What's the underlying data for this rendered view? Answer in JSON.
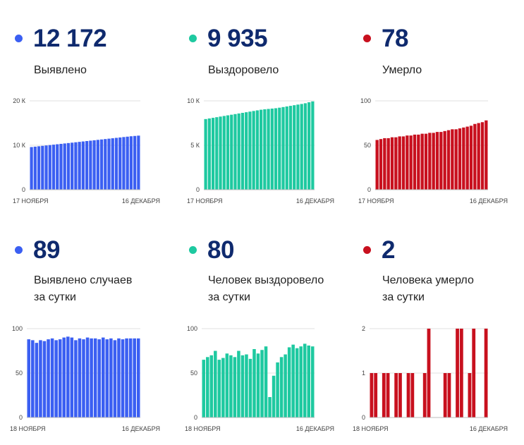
{
  "colors": {
    "blue": "#3b5ff2",
    "green": "#1ec9a0",
    "red": "#c8101e",
    "number": "#0f2a6e"
  },
  "stats": [
    {
      "value": "12 172",
      "label_lines": [
        "Выявлено"
      ],
      "color_key": "blue"
    },
    {
      "value": "9 935",
      "label_lines": [
        "Выздоровело"
      ],
      "color_key": "green"
    },
    {
      "value": "78",
      "label_lines": [
        "Умерло"
      ],
      "color_key": "red"
    },
    {
      "value": "89",
      "label_lines": [
        "Выявлено случаев",
        "за сутки"
      ],
      "color_key": "blue"
    },
    {
      "value": "80",
      "label_lines": [
        "Человек выздоровело",
        "за сутки"
      ],
      "color_key": "green"
    },
    {
      "value": "2",
      "label_lines": [
        "Человека умерло",
        "за сутки"
      ],
      "color_key": "red"
    }
  ],
  "chart_data": [
    {
      "type": "bar",
      "xlabel_start": "17 НОЯБРЯ",
      "xlabel_end": "16 ДЕКАБРЯ",
      "ylim": [
        0,
        20000
      ],
      "yticks": [
        {
          "v": 0,
          "t": "0"
        },
        {
          "v": 10000,
          "t": "10 К"
        },
        {
          "v": 20000,
          "t": "20 К"
        }
      ],
      "values": [
        9600,
        9690,
        9780,
        9870,
        9960,
        10050,
        10140,
        10230,
        10320,
        10410,
        10500,
        10590,
        10680,
        10770,
        10860,
        10950,
        11040,
        11130,
        11220,
        11310,
        11400,
        11490,
        11580,
        11670,
        11760,
        11850,
        11940,
        12030,
        12100,
        12172
      ]
    },
    {
      "type": "bar",
      "xlabel_start": "17 НОЯБРЯ",
      "xlabel_end": "16 ДЕКАБРЯ",
      "ylim": [
        0,
        10000
      ],
      "yticks": [
        {
          "v": 0,
          "t": "0"
        },
        {
          "v": 5000,
          "t": "5 К"
        },
        {
          "v": 10000,
          "t": "10 К"
        }
      ],
      "values": [
        7950,
        8020,
        8090,
        8160,
        8230,
        8300,
        8370,
        8440,
        8510,
        8580,
        8650,
        8720,
        8790,
        8860,
        8930,
        9000,
        9050,
        9090,
        9130,
        9170,
        9230,
        9300,
        9370,
        9440,
        9510,
        9580,
        9650,
        9730,
        9840,
        9935
      ]
    },
    {
      "type": "bar",
      "xlabel_start": "17 НОЯБРЯ",
      "xlabel_end": "16 ДЕКАБРЯ",
      "ylim": [
        0,
        100
      ],
      "yticks": [
        {
          "v": 0,
          "t": "0"
        },
        {
          "v": 50,
          "t": "50"
        },
        {
          "v": 100,
          "t": "100"
        }
      ],
      "values": [
        56,
        57,
        58,
        58,
        59,
        59,
        60,
        60,
        61,
        61,
        62,
        62,
        63,
        63,
        64,
        64,
        65,
        65,
        66,
        67,
        68,
        68,
        69,
        70,
        71,
        72,
        74,
        75,
        76,
        78
      ]
    },
    {
      "type": "bar",
      "xlabel_start": "18 НОЯБРЯ",
      "xlabel_end": "16 ДЕКАБРЯ",
      "ylim": [
        0,
        100
      ],
      "yticks": [
        {
          "v": 0,
          "t": "0"
        },
        {
          "v": 50,
          "t": "50"
        },
        {
          "v": 100,
          "t": "100"
        }
      ],
      "values": [
        88,
        87,
        84,
        87,
        86,
        88,
        89,
        87,
        88,
        90,
        91,
        90,
        87,
        89,
        88,
        90,
        89,
        89,
        88,
        90,
        88,
        89,
        87,
        89,
        88,
        89,
        89,
        89,
        89
      ]
    },
    {
      "type": "bar",
      "xlabel_start": "18 НОЯБРЯ",
      "xlabel_end": "16 ДЕКАБРЯ",
      "ylim": [
        0,
        100
      ],
      "yticks": [
        {
          "v": 0,
          "t": "0"
        },
        {
          "v": 50,
          "t": "50"
        },
        {
          "v": 100,
          "t": "100"
        }
      ],
      "values": [
        65,
        68,
        70,
        75,
        65,
        67,
        72,
        70,
        68,
        75,
        70,
        71,
        66,
        77,
        72,
        76,
        80,
        23,
        47,
        62,
        68,
        71,
        79,
        82,
        78,
        80,
        83,
        81,
        80
      ]
    },
    {
      "type": "bar",
      "xlabel_start": "18 НОЯБРЯ",
      "xlabel_end": "16 ДЕКАБРЯ",
      "ylim": [
        0,
        2
      ],
      "yticks": [
        {
          "v": 0,
          "t": "0"
        },
        {
          "v": 1,
          "t": "1"
        },
        {
          "v": 2,
          "t": "2"
        }
      ],
      "values": [
        1,
        1,
        0,
        1,
        1,
        0,
        1,
        1,
        0,
        1,
        1,
        0,
        0,
        1,
        2,
        0,
        0,
        0,
        1,
        1,
        0,
        2,
        2,
        0,
        1,
        2,
        0,
        0,
        2
      ]
    }
  ]
}
